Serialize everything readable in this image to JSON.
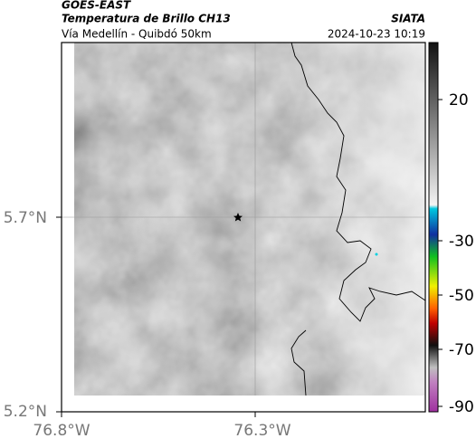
{
  "header": {
    "line1": "GOES-EAST",
    "line2": "Temperatura de Brillo CH13",
    "line3": "Vía Medellín - Quibdó 50km",
    "source": "SIATA",
    "datetime": "2024-10-23 10:19"
  },
  "axes": {
    "lat_labels": [
      "5.7°N",
      "5.2°N"
    ],
    "lon_labels": [
      "76.8°W",
      "76.3°W"
    ]
  },
  "colorbar": {
    "ticks": [
      20,
      -30,
      -50,
      -70,
      -90
    ]
  }
}
